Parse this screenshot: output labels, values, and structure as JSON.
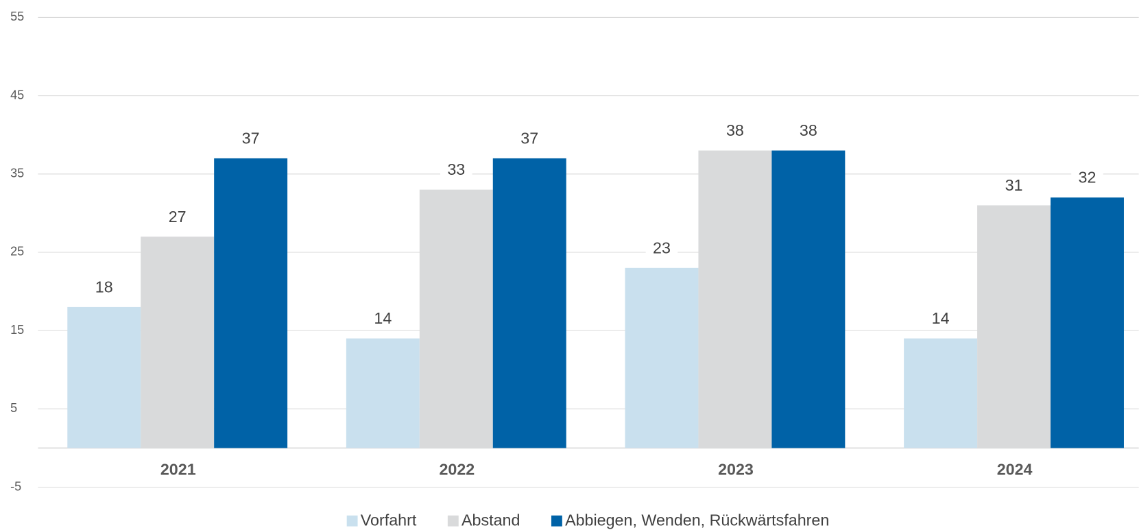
{
  "chart_data": {
    "type": "bar",
    "categories": [
      "2021",
      "2022",
      "2023",
      "2024"
    ],
    "series": [
      {
        "name": "Vorfahrt",
        "color": "#c9e0ee",
        "values": [
          18,
          14,
          23,
          14
        ]
      },
      {
        "name": "Abstand",
        "color": "#d9dadb",
        "values": [
          27,
          33,
          38,
          31
        ]
      },
      {
        "name": "Abbiegen, Wenden, Rückwärtsfahren",
        "color": "#0062a7",
        "values": [
          37,
          37,
          38,
          32
        ]
      }
    ],
    "ylim": [
      -5,
      55
    ],
    "yticks": [
      -5,
      5,
      15,
      25,
      35,
      45,
      55
    ],
    "grid": true,
    "legend": "bottom"
  }
}
